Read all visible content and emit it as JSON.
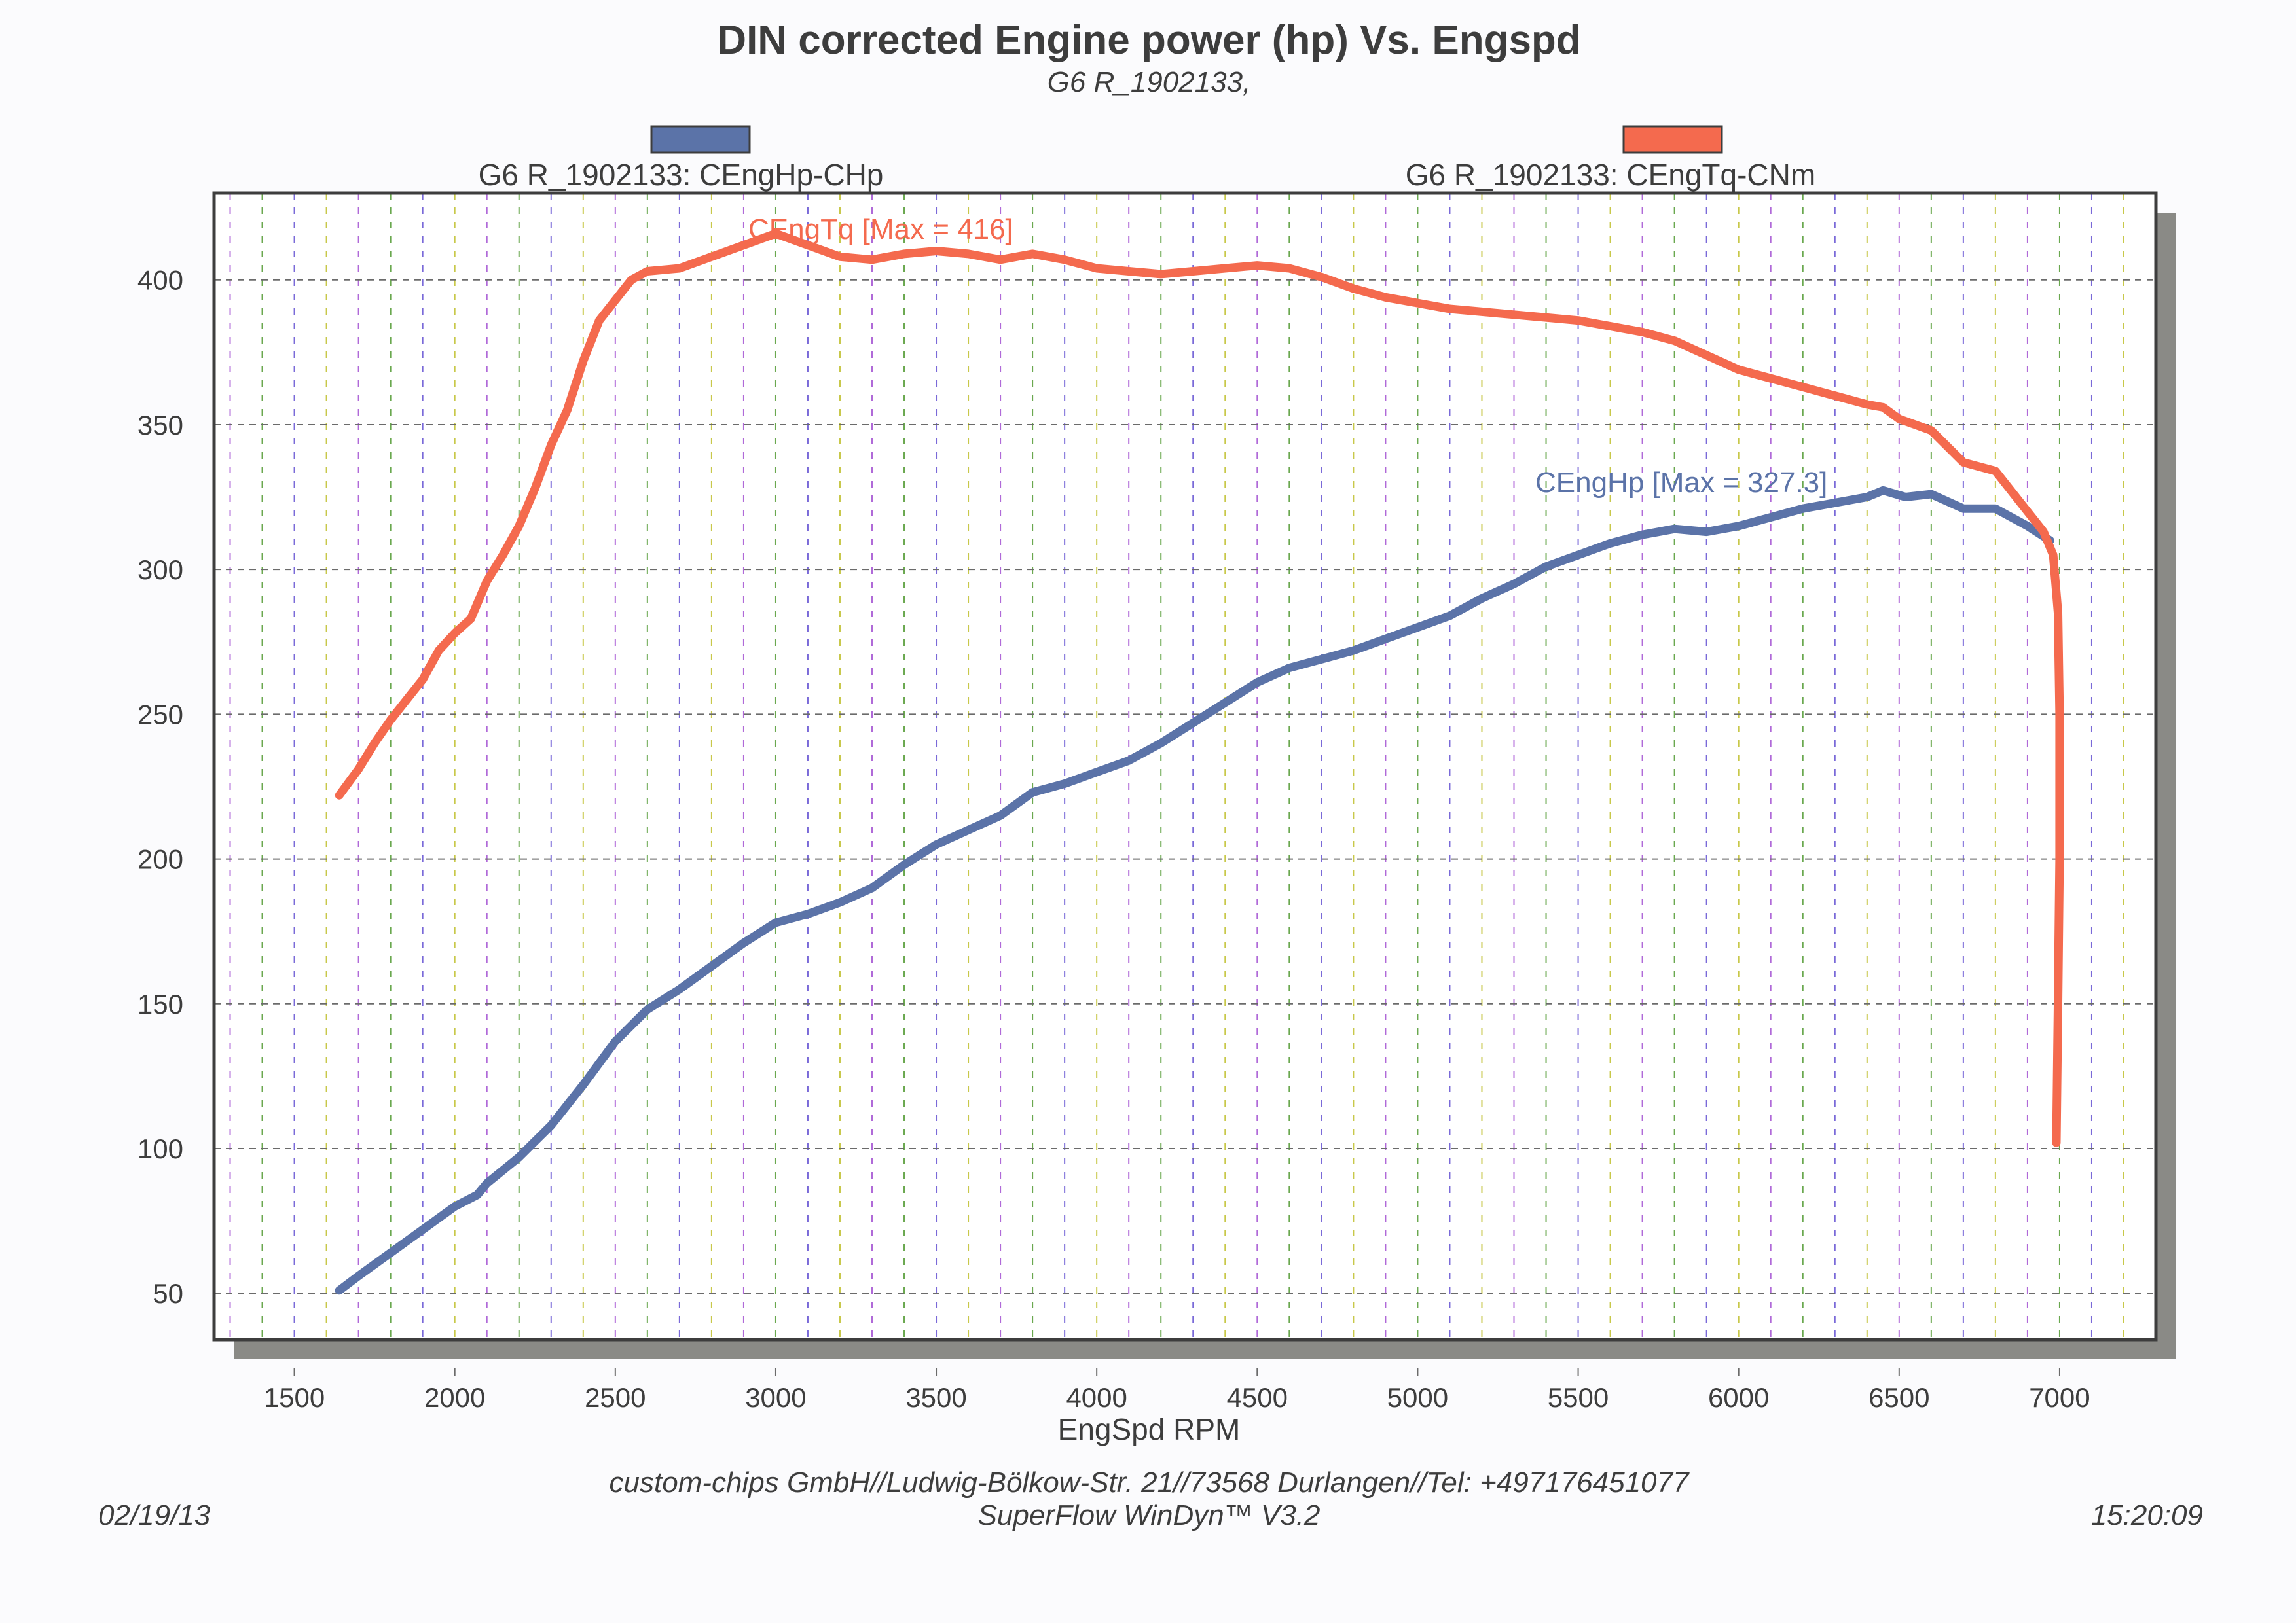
{
  "chart_data": {
    "type": "line",
    "title": "DIN corrected Engine power (hp) Vs. Engspd",
    "subtitle": "G6 R_1902133,",
    "xlabel": "EngSpd RPM",
    "ylabel": "",
    "xlim": [
      1250,
      7300
    ],
    "ylim": [
      34,
      430
    ],
    "x_ticks": [
      1500,
      2000,
      2500,
      3000,
      3500,
      4000,
      4500,
      5000,
      5500,
      6000,
      6500,
      7000
    ],
    "y_ticks": [
      50,
      100,
      150,
      200,
      250,
      300,
      350,
      400
    ],
    "x_tick_labels": [
      "1500",
      "2000",
      "2500",
      "3000",
      "3500",
      "4000",
      "4500",
      "5000",
      "5500",
      "6000",
      "6500",
      "7000"
    ],
    "y_tick_labels": [
      "50",
      "100",
      "150",
      "200",
      "250",
      "300",
      "350",
      "400"
    ],
    "grid": true,
    "legend_placement": "top",
    "series": [
      {
        "name": "G6 R_1902133: CEngHp-CHp",
        "color": "#5b73a8",
        "annotation": "CEngHp [Max = 327.3]",
        "points": [
          [
            1640,
            51
          ],
          [
            1700,
            56
          ],
          [
            1800,
            64
          ],
          [
            1900,
            72
          ],
          [
            2000,
            80
          ],
          [
            2070,
            84
          ],
          [
            2100,
            88
          ],
          [
            2200,
            97
          ],
          [
            2300,
            108
          ],
          [
            2400,
            122
          ],
          [
            2500,
            137
          ],
          [
            2600,
            148
          ],
          [
            2700,
            155
          ],
          [
            2800,
            163
          ],
          [
            2900,
            171
          ],
          [
            3000,
            178
          ],
          [
            3100,
            181
          ],
          [
            3200,
            185
          ],
          [
            3300,
            190
          ],
          [
            3400,
            198
          ],
          [
            3500,
            205
          ],
          [
            3600,
            210
          ],
          [
            3700,
            215
          ],
          [
            3800,
            223
          ],
          [
            3900,
            226
          ],
          [
            4000,
            230
          ],
          [
            4100,
            234
          ],
          [
            4200,
            240
          ],
          [
            4300,
            247
          ],
          [
            4400,
            254
          ],
          [
            4500,
            261
          ],
          [
            4600,
            266
          ],
          [
            4700,
            269
          ],
          [
            4800,
            272
          ],
          [
            4900,
            276
          ],
          [
            5000,
            280
          ],
          [
            5100,
            284
          ],
          [
            5200,
            290
          ],
          [
            5300,
            295
          ],
          [
            5400,
            301
          ],
          [
            5500,
            305
          ],
          [
            5600,
            309
          ],
          [
            5700,
            312
          ],
          [
            5800,
            314
          ],
          [
            5900,
            313
          ],
          [
            6000,
            315
          ],
          [
            6100,
            318
          ],
          [
            6200,
            321
          ],
          [
            6300,
            323
          ],
          [
            6400,
            325
          ],
          [
            6450,
            327.3
          ],
          [
            6520,
            325
          ],
          [
            6600,
            326
          ],
          [
            6700,
            321
          ],
          [
            6800,
            321
          ],
          [
            6900,
            315
          ],
          [
            6970,
            310
          ]
        ]
      },
      {
        "name": "G6 R_1902133: CEngTq-CNm",
        "color": "#f46a4e",
        "annotation": "CEngTq [Max = 416]",
        "points": [
          [
            1640,
            222
          ],
          [
            1700,
            231
          ],
          [
            1750,
            240
          ],
          [
            1800,
            248
          ],
          [
            1850,
            255
          ],
          [
            1900,
            262
          ],
          [
            1950,
            272
          ],
          [
            2000,
            278
          ],
          [
            2050,
            283
          ],
          [
            2100,
            296
          ],
          [
            2150,
            305
          ],
          [
            2200,
            315
          ],
          [
            2250,
            328
          ],
          [
            2300,
            343
          ],
          [
            2350,
            355
          ],
          [
            2400,
            372
          ],
          [
            2450,
            386
          ],
          [
            2500,
            393
          ],
          [
            2550,
            400
          ],
          [
            2600,
            403
          ],
          [
            2700,
            404
          ],
          [
            2800,
            408
          ],
          [
            2900,
            412
          ],
          [
            3000,
            416
          ],
          [
            3100,
            412
          ],
          [
            3200,
            408
          ],
          [
            3300,
            407
          ],
          [
            3400,
            409
          ],
          [
            3500,
            410
          ],
          [
            3600,
            409
          ],
          [
            3700,
            407
          ],
          [
            3800,
            409
          ],
          [
            3900,
            407
          ],
          [
            4000,
            404
          ],
          [
            4100,
            403
          ],
          [
            4200,
            402
          ],
          [
            4300,
            403
          ],
          [
            4400,
            404
          ],
          [
            4500,
            405
          ],
          [
            4600,
            404
          ],
          [
            4700,
            401
          ],
          [
            4800,
            397
          ],
          [
            4900,
            394
          ],
          [
            5000,
            392
          ],
          [
            5100,
            390
          ],
          [
            5200,
            389
          ],
          [
            5300,
            388
          ],
          [
            5400,
            387
          ],
          [
            5500,
            386
          ],
          [
            5600,
            384
          ],
          [
            5700,
            382
          ],
          [
            5800,
            379
          ],
          [
            5900,
            374
          ],
          [
            6000,
            369
          ],
          [
            6100,
            366
          ],
          [
            6200,
            363
          ],
          [
            6300,
            360
          ],
          [
            6400,
            357
          ],
          [
            6450,
            356
          ],
          [
            6500,
            352
          ],
          [
            6600,
            348
          ],
          [
            6700,
            337
          ],
          [
            6800,
            334
          ],
          [
            6900,
            320
          ],
          [
            6950,
            313
          ],
          [
            6980,
            305
          ],
          [
            6995,
            285
          ],
          [
            7000,
            250
          ],
          [
            7000,
            200
          ],
          [
            6995,
            150
          ],
          [
            6990,
            102
          ]
        ]
      }
    ]
  },
  "footer": {
    "company": "custom-chips GmbH//Ludwig-Bölkow-Str. 21//73568 Durlangen//Tel: +497176451077",
    "software": "SuperFlow WinDyn™ V3.2",
    "date": "02/19/13",
    "time": "15:20:09"
  }
}
